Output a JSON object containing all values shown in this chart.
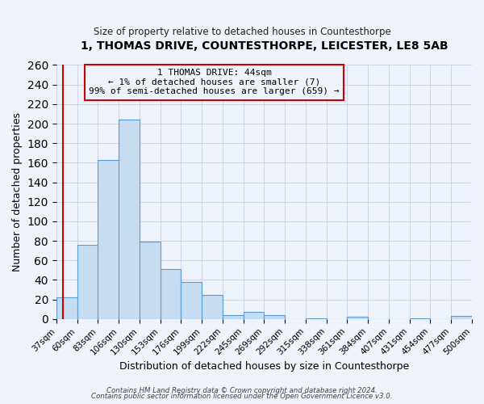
{
  "title": "1, THOMAS DRIVE, COUNTESTHORPE, LEICESTER, LE8 5AB",
  "subtitle": "Size of property relative to detached houses in Countesthorpe",
  "xlabel": "Distribution of detached houses by size in Countesthorpe",
  "ylabel": "Number of detached properties",
  "footer_lines": [
    "Contains HM Land Registry data © Crown copyright and database right 2024.",
    "Contains public sector information licensed under the Open Government Licence v3.0."
  ],
  "bin_labels": [
    "37sqm",
    "60sqm",
    "83sqm",
    "106sqm",
    "130sqm",
    "153sqm",
    "176sqm",
    "199sqm",
    "222sqm",
    "245sqm",
    "269sqm",
    "292sqm",
    "315sqm",
    "338sqm",
    "361sqm",
    "384sqm",
    "407sqm",
    "431sqm",
    "454sqm",
    "477sqm",
    "500sqm"
  ],
  "bar_values": [
    22,
    76,
    163,
    204,
    79,
    51,
    38,
    25,
    4,
    7,
    4,
    0,
    1,
    0,
    2,
    0,
    0,
    1,
    0,
    3
  ],
  "bar_color": "#c6dcf0",
  "bar_edge_color": "#5b9bd5",
  "ylim": [
    0,
    260
  ],
  "yticks": [
    0,
    20,
    40,
    60,
    80,
    100,
    120,
    140,
    160,
    180,
    200,
    220,
    240,
    260
  ],
  "annotation_box_color": "#cc0000",
  "annotation_line1": "1 THOMAS DRIVE: 44sqm",
  "annotation_line2": "← 1% of detached houses are smaller (7)",
  "annotation_line3": "99% of semi-detached houses are larger (659) →",
  "vline_x": 44,
  "bg_color": "#eef2fb",
  "grid_color": "#c8d0e8"
}
